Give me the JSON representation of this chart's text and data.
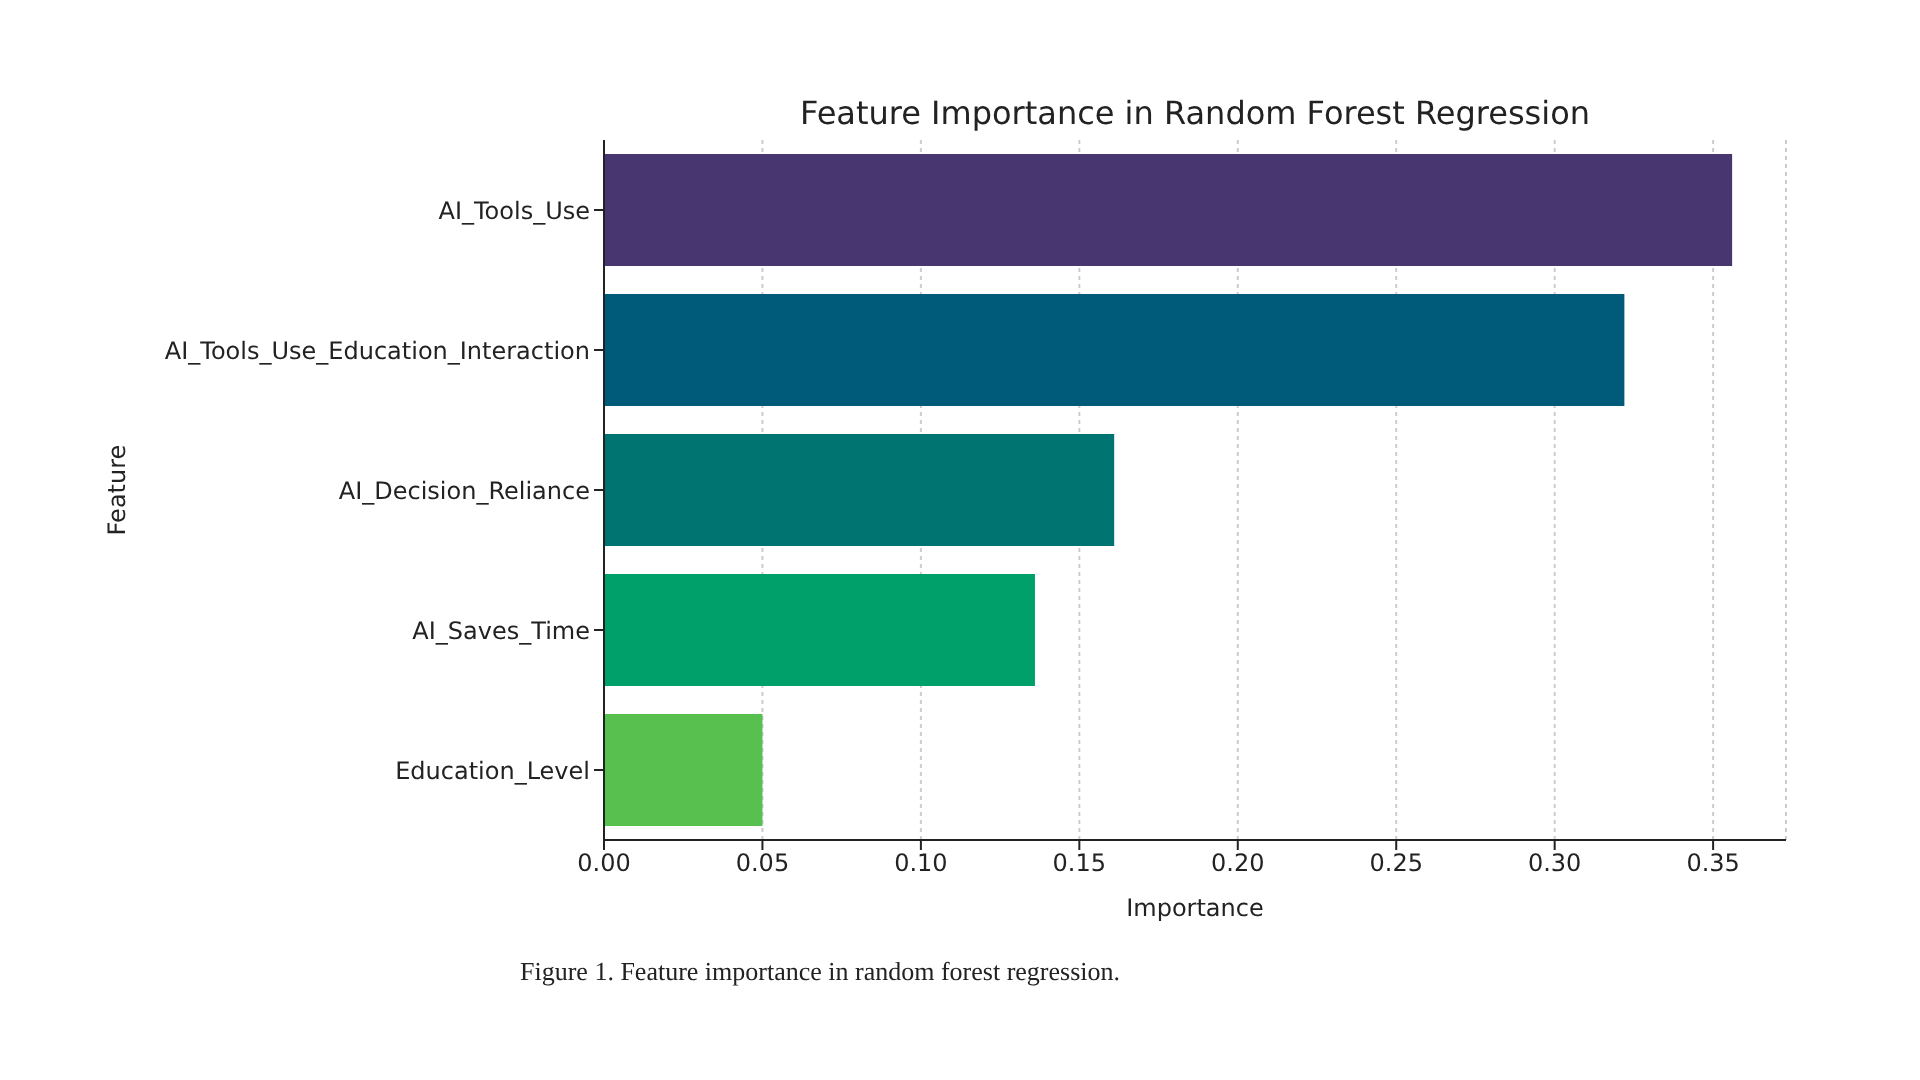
{
  "chart_data": {
    "type": "bar",
    "orientation": "horizontal",
    "title": "Feature Importance in Random Forest Regression",
    "xlabel": "Importance",
    "ylabel": "Feature",
    "categories": [
      "AI_Tools_Use",
      "AI_Tools_Use_Education_Interaction",
      "AI_Decision_Reliance",
      "AI_Saves_Time",
      "Education_Level"
    ],
    "values": [
      0.356,
      0.322,
      0.161,
      0.136,
      0.05
    ],
    "colors": [
      "#47366f",
      "#005b7b",
      "#007471",
      "#00a06b",
      "#57c04f"
    ],
    "xlim": [
      0,
      0.373
    ],
    "xticks": [
      {
        "value": 0,
        "label": "0.00"
      },
      0.05,
      {
        "value": 0.1,
        "label": "0.10"
      },
      0.15,
      {
        "value": 0.2,
        "label": "0.20"
      },
      0.25,
      {
        "value": 0.3,
        "label": "0.30"
      },
      0.35
    ],
    "grid": "x",
    "annotations": [
      "Figure 1. Feature importance in random forest regression."
    ]
  }
}
